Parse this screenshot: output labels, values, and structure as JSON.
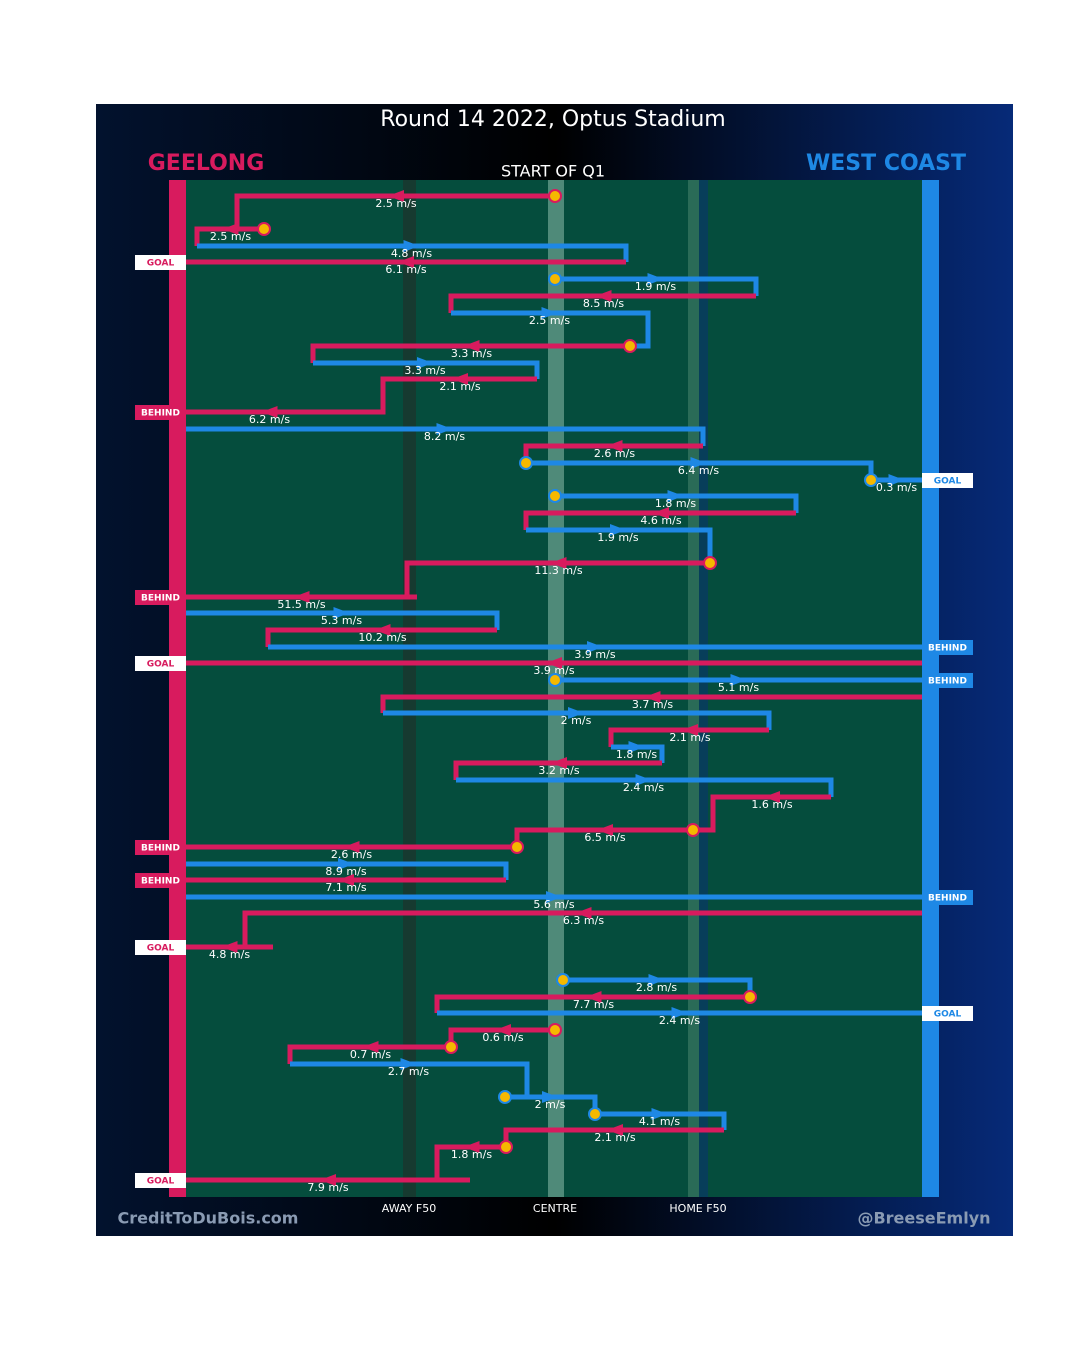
{
  "title": "Round 14 2022, Optus Stadium",
  "subtitle": "START OF Q1",
  "left_team": "GEELONG",
  "right_team": "WEST COAST",
  "zones": [
    "AWAY F50",
    "CENTRE",
    "HOME F50"
  ],
  "credit_left": "CreditToDuBois.com",
  "credit_right": "@BreeseEmlyn",
  "chains": [
    {
      "label": "2.5 m/s",
      "color": "#d81b5e"
    },
    {
      "label": "2.5 m/s",
      "color": "#d81b5e"
    },
    {
      "label": "4.8 m/s",
      "color": "#1e88e5"
    },
    {
      "label": "6.1 m/s",
      "color": "#d81b5e",
      "outcome": "GOAL"
    },
    {
      "label": "1.9 m/s",
      "color": "#1e88e5"
    },
    {
      "label": "8.5 m/s",
      "color": "#d81b5e"
    },
    {
      "label": "2.5 m/s",
      "color": "#1e88e5"
    },
    {
      "label": "3.3 m/s",
      "color": "#d81b5e"
    },
    {
      "label": "3.3 m/s",
      "color": "#1e88e5"
    },
    {
      "label": "2.1 m/s",
      "color": "#d81b5e"
    },
    {
      "label": "6.2 m/s",
      "color": "#d81b5e",
      "outcome": "BEHIND"
    },
    {
      "label": "8.2 m/s",
      "color": "#1e88e5"
    },
    {
      "label": "2.6 m/s",
      "color": "#d81b5e"
    },
    {
      "label": "6.4 m/s",
      "color": "#1e88e5"
    },
    {
      "label": "0.3 m/s",
      "color": "#1e88e5",
      "outcome": "GOAL"
    },
    {
      "label": "1.8 m/s",
      "color": "#1e88e5"
    },
    {
      "label": "4.6 m/s",
      "color": "#d81b5e"
    },
    {
      "label": "1.9 m/s",
      "color": "#1e88e5"
    },
    {
      "label": "11.3 m/s",
      "color": "#d81b5e"
    },
    {
      "label": "51.5 m/s",
      "color": "#d81b5e",
      "outcome": "BEHIND"
    },
    {
      "label": "5.3 m/s",
      "color": "#1e88e5"
    },
    {
      "label": "10.2 m/s",
      "color": "#d81b5e"
    },
    {
      "label": "3.9 m/s",
      "color": "#1e88e5",
      "outcome": "BEHIND"
    },
    {
      "label": "3.9 m/s",
      "color": "#d81b5e",
      "outcome": "GOAL"
    },
    {
      "label": "5.1 m/s",
      "color": "#1e88e5",
      "outcome": "BEHIND"
    },
    {
      "label": "3.7 m/s",
      "color": "#d81b5e"
    },
    {
      "label": "2 m/s",
      "color": "#1e88e5"
    },
    {
      "label": "2.1 m/s",
      "color": "#d81b5e"
    },
    {
      "label": "1.8 m/s",
      "color": "#1e88e5"
    },
    {
      "label": "3.2 m/s",
      "color": "#d81b5e"
    },
    {
      "label": "2.4 m/s",
      "color": "#1e88e5"
    },
    {
      "label": "1.6 m/s",
      "color": "#d81b5e"
    },
    {
      "label": "6.5 m/s",
      "color": "#d81b5e"
    },
    {
      "label": "2.6 m/s",
      "color": "#d81b5e",
      "outcome": "BEHIND"
    },
    {
      "label": "8.9 m/s",
      "color": "#1e88e5"
    },
    {
      "label": "7.1 m/s",
      "color": "#d81b5e",
      "outcome": "BEHIND"
    },
    {
      "label": "5.6 m/s",
      "color": "#1e88e5",
      "outcome": "BEHIND"
    },
    {
      "label": "6.3 m/s",
      "color": "#d81b5e"
    },
    {
      "label": "4.8 m/s",
      "color": "#d81b5e",
      "outcome": "GOAL"
    },
    {
      "label": "2.8 m/s",
      "color": "#1e88e5"
    },
    {
      "label": "7.7 m/s",
      "color": "#d81b5e"
    },
    {
      "label": "2.4 m/s",
      "color": "#1e88e5",
      "outcome": "GOAL"
    },
    {
      "label": "0.6 m/s",
      "color": "#d81b5e"
    },
    {
      "label": "0.7 m/s",
      "color": "#d81b5e"
    },
    {
      "label": "2.7 m/s",
      "color": "#1e88e5"
    },
    {
      "label": "2 m/s",
      "color": "#1e88e5"
    },
    {
      "label": "4.1 m/s",
      "color": "#1e88e5"
    },
    {
      "label": "2.1 m/s",
      "color": "#d81b5e"
    },
    {
      "label": "1.8 m/s",
      "color": "#d81b5e"
    },
    {
      "label": "7.9 m/s",
      "color": "#d81b5e",
      "outcome": "GOAL"
    }
  ]
}
